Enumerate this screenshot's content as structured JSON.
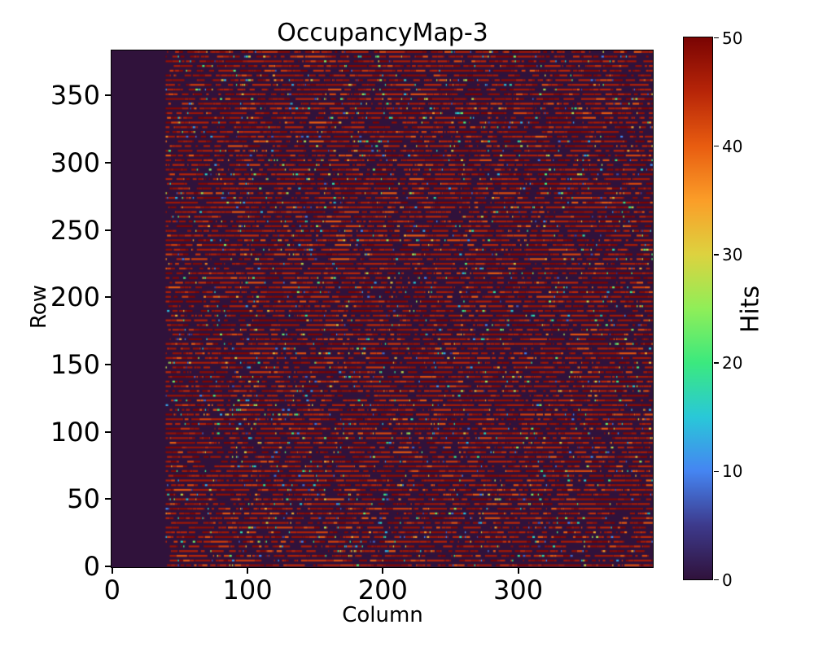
{
  "chart_data": {
    "type": "heatmap",
    "title": "OccupancyMap-3",
    "xlabel": "Column",
    "ylabel": "Row",
    "colorbar_label": "Hits",
    "x_ticks": [
      0,
      100,
      200,
      300
    ],
    "y_ticks": [
      0,
      50,
      100,
      150,
      200,
      250,
      300,
      350
    ],
    "colorbar_ticks": [
      0,
      10,
      20,
      30,
      40,
      50
    ],
    "xlim": [
      0,
      400
    ],
    "ylim": [
      0,
      384
    ],
    "zlim": [
      0,
      50
    ],
    "grid_cols": 400,
    "grid_rows": 384,
    "grid": false,
    "legend": "colorbar-right",
    "colormap": "turbo",
    "colormap_stops": [
      [
        0.0,
        "#30123b"
      ],
      [
        0.1,
        "#3d3a8c"
      ],
      [
        0.2,
        "#4585f2"
      ],
      [
        0.3,
        "#29c8d8"
      ],
      [
        0.4,
        "#3be97e"
      ],
      [
        0.5,
        "#90ee58"
      ],
      [
        0.6,
        "#ddd23f"
      ],
      [
        0.7,
        "#fb9d28"
      ],
      [
        0.8,
        "#e85c10"
      ],
      [
        0.9,
        "#b72508"
      ],
      [
        1.0,
        "#7a0403"
      ]
    ],
    "pattern": {
      "description": "Columns 0-40 have no hits (value 0). Remaining columns show horizontal dash rows: mostly saturated values ~45-50 (dark red), ~14% scattered random values 4-45, ~30% gaps of 0.",
      "first_hit_column": 40,
      "hit_row_period_rows": 3.5,
      "dominant_hit_value_range": [
        45,
        50
      ],
      "scatter_hit_value_range": [
        4,
        45
      ],
      "fractions": {
        "gap": 0.3,
        "dominant": 0.56,
        "scatter": 0.14
      },
      "seed": 1337
    }
  }
}
